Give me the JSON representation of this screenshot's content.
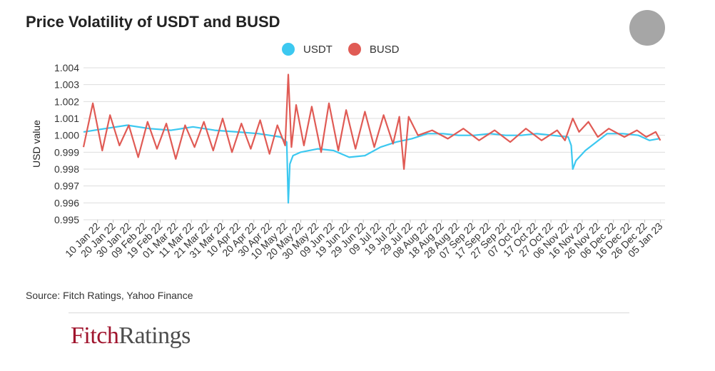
{
  "title": "Price Volatility of USDT and BUSD",
  "source": "Source: Fitch Ratings, Yahoo Finance",
  "logo": {
    "part1": "Fitch",
    "part2": "Ratings"
  },
  "colors": {
    "usdt": "#3cc8f0",
    "busd": "#e05b55",
    "grid": "#dddddd",
    "text": "#333333"
  },
  "chart_data": {
    "type": "line",
    "title": "Price Volatility of USDT and BUSD",
    "xlabel": "",
    "ylabel": "USD value",
    "ylim": [
      0.995,
      1.004
    ],
    "yticks": [
      1.004,
      1.003,
      1.002,
      1.001,
      1.0,
      0.999,
      0.998,
      0.997,
      0.996,
      0.995
    ],
    "ytick_labels": [
      "1.004",
      "1.003",
      "1.002",
      "1.001",
      "1.000",
      "0.999",
      "0.998",
      "0.997",
      "0.996",
      "0.995"
    ],
    "xlim": [
      "2022-01-01",
      "2023-01-08"
    ],
    "xtick_labels": [
      "10 Jan 22",
      "20 Jan 22",
      "30 Jan 22",
      "09 Feb 22",
      "19 Feb 22",
      "01 Mar 22",
      "11 Mar 22",
      "21 Mar 22",
      "31 Mar 22",
      "10 Apr 22",
      "20 Apr 22",
      "30 Apr 22",
      "10 May 22",
      "20 May 22",
      "30 May 22",
      "09 Jun 22",
      "19 Jun 22",
      "29 Jun 22",
      "09 Jul 22",
      "19 Jul 22",
      "29 Jul 22",
      "08 Aug 22",
      "18 Aug 22",
      "28 Aug 22",
      "07 Sep 22",
      "17 Sep 22",
      "27 Sep 22",
      "07 Oct 22",
      "17 Oct 22",
      "27 Oct 22",
      "06 Nov 22",
      "16 Nov 22",
      "26 Nov 22",
      "06 Dec 22",
      "16 Dec 22",
      "26 Dec 22",
      "05 Jan 23"
    ],
    "grid": true,
    "legend": "top-center",
    "series": [
      {
        "name": "USDT",
        "color": "#3cc8f0",
        "dates": [
          "2022-01-01",
          "2022-01-15",
          "2022-01-29",
          "2022-02-12",
          "2022-02-26",
          "2022-03-12",
          "2022-03-26",
          "2022-04-09",
          "2022-04-23",
          "2022-05-07",
          "2022-05-11",
          "2022-05-12",
          "2022-05-13",
          "2022-05-15",
          "2022-05-20",
          "2022-05-31",
          "2022-06-10",
          "2022-06-20",
          "2022-06-30",
          "2022-07-10",
          "2022-07-20",
          "2022-07-30",
          "2022-08-09",
          "2022-08-19",
          "2022-08-29",
          "2022-09-08",
          "2022-09-18",
          "2022-09-28",
          "2022-10-08",
          "2022-10-18",
          "2022-10-28",
          "2022-11-07",
          "2022-11-09",
          "2022-11-10",
          "2022-11-12",
          "2022-11-18",
          "2022-11-25",
          "2022-12-02",
          "2022-12-12",
          "2022-12-22",
          "2022-12-29",
          "2023-01-04"
        ],
        "values": [
          1.0002,
          1.0004,
          1.0006,
          1.0004,
          1.0003,
          1.0005,
          1.0003,
          1.0002,
          1.0001,
          0.9999,
          0.9996,
          0.996,
          0.9983,
          0.9988,
          0.999,
          0.9992,
          0.9991,
          0.9987,
          0.9988,
          0.9993,
          0.9996,
          0.9998,
          1.0001,
          1.0001,
          1.0,
          1.0,
          1.0001,
          1.0,
          1.0,
          1.0001,
          1.0,
          0.9999,
          0.9994,
          0.998,
          0.9985,
          0.9991,
          0.9996,
          1.0001,
          1.0001,
          1.0,
          0.9997,
          0.9998
        ]
      },
      {
        "name": "BUSD",
        "color": "#e05b55",
        "dates": [
          "2022-01-01",
          "2022-01-07",
          "2022-01-13",
          "2022-01-18",
          "2022-01-24",
          "2022-01-30",
          "2022-02-05",
          "2022-02-11",
          "2022-02-17",
          "2022-02-23",
          "2022-03-01",
          "2022-03-07",
          "2022-03-13",
          "2022-03-19",
          "2022-03-25",
          "2022-03-31",
          "2022-04-06",
          "2022-04-12",
          "2022-04-18",
          "2022-04-24",
          "2022-04-30",
          "2022-05-05",
          "2022-05-10",
          "2022-05-12",
          "2022-05-14",
          "2022-05-17",
          "2022-05-22",
          "2022-05-27",
          "2022-06-02",
          "2022-06-07",
          "2022-06-13",
          "2022-06-18",
          "2022-06-24",
          "2022-06-30",
          "2022-07-06",
          "2022-07-12",
          "2022-07-18",
          "2022-07-22",
          "2022-07-25",
          "2022-07-28",
          "2022-08-03",
          "2022-08-12",
          "2022-08-22",
          "2022-09-01",
          "2022-09-11",
          "2022-09-21",
          "2022-10-01",
          "2022-10-11",
          "2022-10-21",
          "2022-10-31",
          "2022-11-05",
          "2022-11-10",
          "2022-11-14",
          "2022-11-20",
          "2022-11-26",
          "2022-12-03",
          "2022-12-13",
          "2022-12-21",
          "2022-12-27",
          "2023-01-02",
          "2023-01-05"
        ],
        "values": [
          0.9993,
          1.0019,
          0.9991,
          1.0012,
          0.9994,
          1.0006,
          0.9987,
          1.0008,
          0.9992,
          1.0007,
          0.9986,
          1.0006,
          0.9993,
          1.0008,
          0.9991,
          1.001,
          0.999,
          1.0007,
          0.9992,
          1.0009,
          0.9989,
          1.0006,
          0.9994,
          1.0036,
          0.9993,
          1.0018,
          0.9994,
          1.0017,
          0.999,
          1.0019,
          0.9991,
          1.0015,
          0.9992,
          1.0014,
          0.9993,
          1.0012,
          0.9995,
          1.0011,
          0.998,
          1.0011,
          1.0,
          1.0003,
          0.9998,
          1.0004,
          0.9997,
          1.0003,
          0.9996,
          1.0004,
          0.9997,
          1.0003,
          0.9997,
          1.001,
          1.0002,
          1.0008,
          0.9999,
          1.0004,
          0.9999,
          1.0003,
          0.9999,
          1.0002,
          0.9997
        ]
      }
    ]
  }
}
